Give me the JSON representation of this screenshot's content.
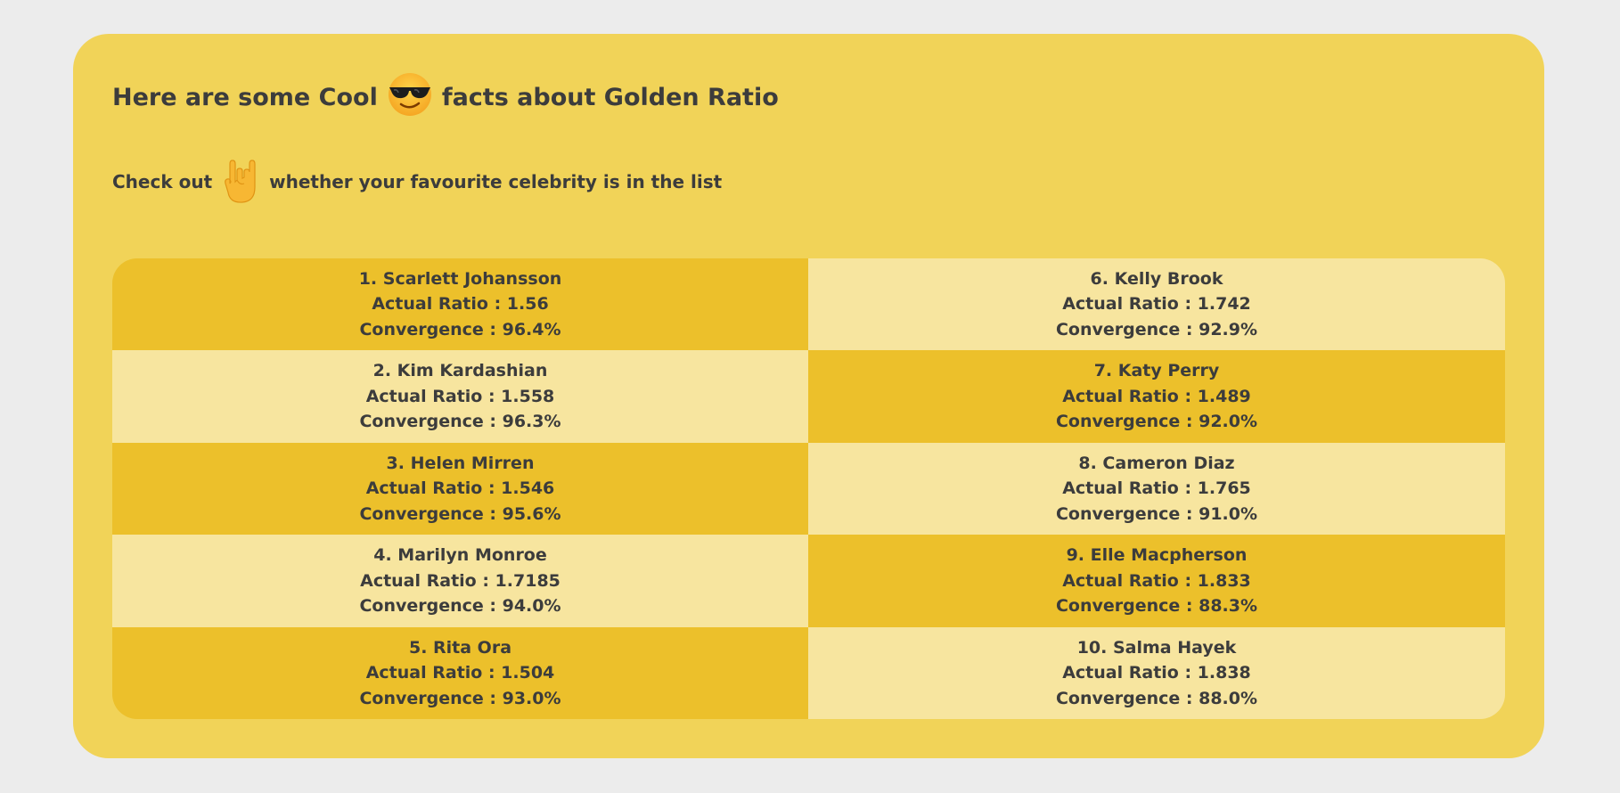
{
  "header": {
    "title_before": "Here are some Cool",
    "title_icon": "sunglasses-face-emoji",
    "title_after": "facts about Golden Ratio"
  },
  "subheader": {
    "text_before": "Check out",
    "icon": "rock-on-hand-emoji",
    "text_after": "whether your favourite celebrity is in the list"
  },
  "colors": {
    "background": "#ececec",
    "card": "#f1d358",
    "cell_dark": "#ecc02b",
    "cell_light": "#f7e59f",
    "text": "#3c3c3c"
  },
  "celebrities": [
    {
      "name": "1. Scarlett Johansson",
      "ratio": "Actual Ratio : 1.56",
      "convergence": "Convergence : 96.4%"
    },
    {
      "name": "2. Kim Kardashian",
      "ratio": "Actual Ratio : 1.558",
      "convergence": "Convergence : 96.3%"
    },
    {
      "name": "3. Helen Mirren",
      "ratio": "Actual Ratio : 1.546",
      "convergence": "Convergence : 95.6%"
    },
    {
      "name": "4. Marilyn Monroe",
      "ratio": "Actual Ratio : 1.7185",
      "convergence": "Convergence : 94.0%"
    },
    {
      "name": "5. Rita Ora",
      "ratio": "Actual Ratio : 1.504",
      "convergence": "Convergence : 93.0%"
    },
    {
      "name": "6. Kelly Brook",
      "ratio": "Actual Ratio : 1.742",
      "convergence": "Convergence : 92.9%"
    },
    {
      "name": "7. Katy Perry",
      "ratio": "Actual Ratio : 1.489",
      "convergence": "Convergence : 92.0%"
    },
    {
      "name": "8. Cameron Diaz",
      "ratio": "Actual Ratio : 1.765",
      "convergence": "Convergence : 91.0%"
    },
    {
      "name": "9. Elle Macpherson",
      "ratio": "Actual Ratio : 1.833",
      "convergence": "Convergence : 88.3%"
    },
    {
      "name": "10. Salma Hayek",
      "ratio": "Actual Ratio : 1.838",
      "convergence": "Convergence : 88.0%"
    }
  ]
}
